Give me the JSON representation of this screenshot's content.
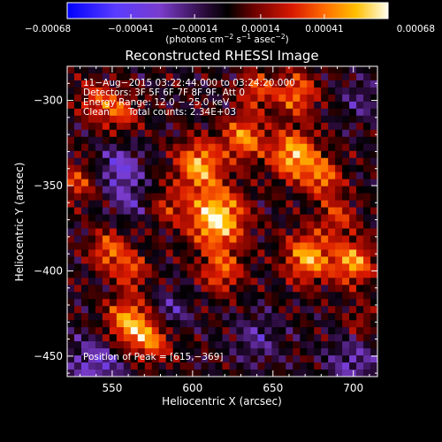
{
  "chart_data": {
    "type": "heatmap",
    "title": "Reconstructed RHESSI Image",
    "xlabel": "Heliocentric X (arcsec)",
    "ylabel": "Heliocentric Y (arcsec)",
    "xlim": [
      522,
      715
    ],
    "ylim": [
      -462,
      -280
    ],
    "x_ticks": [
      550,
      600,
      650,
      700
    ],
    "y_ticks": [
      -450,
      -400,
      -350,
      -300
    ],
    "x_tick_labels": [
      "550",
      "600",
      "650",
      "700"
    ],
    "y_tick_labels": [
      "−450",
      "−400",
      "−350",
      "−300"
    ],
    "colorbar": {
      "range": [
        -0.00068,
        0.00068
      ],
      "tick_values": [
        -0.00068,
        -0.00041,
        -0.00014,
        0.00014,
        0.00041,
        0.00068
      ],
      "tick_labels": [
        "−0.00068",
        "−0.00041",
        "−0.00014",
        "0.00014",
        "0.00041",
        "0.00068"
      ],
      "unit_prefix": "(photons cm",
      "unit_exp1": "−2",
      "unit_mid1": " s",
      "unit_exp2": "−1",
      "unit_mid2": " asec",
      "unit_exp3": "−2",
      "unit_suffix": ")"
    },
    "annotations": {
      "time_range": "11−Aug−2015 03:22:44.000 to 03:24:20.000",
      "detectors": "Detectors: 3F 5F 6F 7F 8F 9F, Att 0",
      "energy_range": "Energy Range: 12.0 − 25.0 keV",
      "clean_label": "Clean",
      "total_counts": "Total counts: 2.34E+03",
      "peak_position": "Position of Peak = [615,−369]"
    },
    "peak": {
      "x": 615,
      "y": -369
    },
    "grid": false,
    "blobs": [
      {
        "x": 615,
        "y": -369,
        "amp": 1.0,
        "w": 12
      },
      {
        "x": 604,
        "y": -338,
        "amp": 0.8,
        "w": 10
      },
      {
        "x": 632,
        "y": -322,
        "amp": 0.7,
        "w": 9
      },
      {
        "x": 618,
        "y": -400,
        "amp": 0.55,
        "w": 9
      },
      {
        "x": 663,
        "y": -332,
        "amp": 0.85,
        "w": 10
      },
      {
        "x": 681,
        "y": -345,
        "amp": 0.6,
        "w": 8
      },
      {
        "x": 672,
        "y": -392,
        "amp": 0.8,
        "w": 10
      },
      {
        "x": 700,
        "y": -395,
        "amp": 0.75,
        "w": 9
      },
      {
        "x": 690,
        "y": -368,
        "amp": 0.45,
        "w": 8
      },
      {
        "x": 560,
        "y": -430,
        "amp": 0.75,
        "w": 10
      },
      {
        "x": 575,
        "y": -440,
        "amp": 0.6,
        "w": 9
      },
      {
        "x": 548,
        "y": -388,
        "amp": 0.6,
        "w": 8
      },
      {
        "x": 562,
        "y": -400,
        "amp": 0.5,
        "w": 7
      },
      {
        "x": 555,
        "y": -307,
        "amp": 0.5,
        "w": 8
      },
      {
        "x": 540,
        "y": -300,
        "amp": 0.45,
        "w": 8
      },
      {
        "x": 665,
        "y": -296,
        "amp": 0.6,
        "w": 9
      },
      {
        "x": 640,
        "y": -294,
        "amp": 0.5,
        "w": 8
      },
      {
        "x": 705,
        "y": -430,
        "amp": 0.3,
        "w": 7
      },
      {
        "x": 528,
        "y": -348,
        "amp": 0.45,
        "w": 8
      },
      {
        "x": 585,
        "y": -362,
        "amp": 0.35,
        "w": 8
      },
      {
        "x": 540,
        "y": -455,
        "amp": -0.45,
        "w": 12
      },
      {
        "x": 555,
        "y": -340,
        "amp": -0.5,
        "w": 9
      },
      {
        "x": 585,
        "y": -425,
        "amp": -0.35,
        "w": 9
      },
      {
        "x": 640,
        "y": -440,
        "amp": -0.3,
        "w": 10
      },
      {
        "x": 700,
        "y": -455,
        "amp": -0.35,
        "w": 12
      },
      {
        "x": 560,
        "y": -360,
        "amp": -0.3,
        "w": 8
      },
      {
        "x": 705,
        "y": -300,
        "amp": -0.25,
        "w": 9
      }
    ]
  }
}
